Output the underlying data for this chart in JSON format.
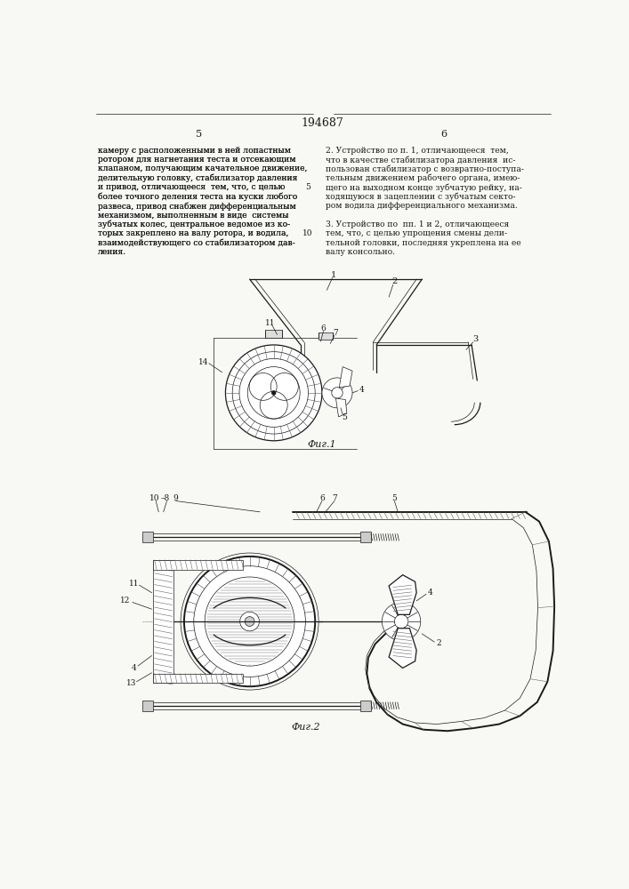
{
  "page_width": 7.07,
  "page_height": 10.0,
  "bg_color": "#f8f8f4",
  "line_color": "#1a1a1a",
  "patent_number": "194687",
  "page_left": "5",
  "page_right": "6",
  "text_left_lines": [
    "камеру с расположенными в ней лопастным",
    "ротором для нагнетания теста и отсекающим",
    "клапаном, получающим качательное движение,",
    "делительную головку, стабилизатор давления",
    "и привод, отличающееся  тем, что, с целью",
    "более точного деления теста на куски любого",
    "развеса, привод снабжен дифференциальным",
    "механизмом, выполненным в виде  системы",
    "зубчатых колес, центральное ведомое из ко-",
    "торых закреплено на валу ротора, и водила,",
    "взаимодействующего со стабилизатором дав-",
    "ления."
  ],
  "text_right_lines": [
    "2. Устройство по п. 1, отличающееся  тем,",
    "что в качестве стабилизатора давления  ис-",
    "пользован стабилизатор с возвратно-поступа-",
    "тельным движением рабочего органа, имею-",
    "щего на выходном конце зубчатую рейку, на-",
    "ходящуюся в зацеплении с зубчатым секто-",
    "ром водила дифференциального механизма.",
    "",
    "3. Устройство по  пп. 1 и 2, отличающееся",
    "тем, что, с целью упрощения смены дели-",
    "тельной головки, последняя укреплена на ее",
    "валу консольно."
  ],
  "fig1_caption": "Фиг.1",
  "fig2_caption": "Фиг.2"
}
